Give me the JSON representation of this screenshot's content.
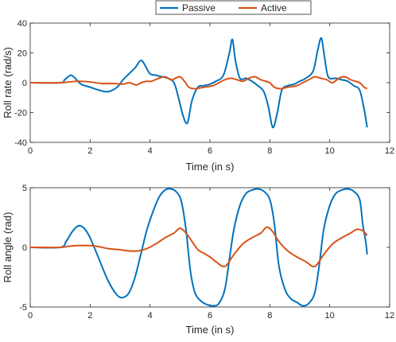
{
  "legend": {
    "items": [
      {
        "label": "Passive",
        "color": "#0072BD"
      },
      {
        "label": "Active",
        "color": "#D95319"
      }
    ]
  },
  "chart_data": [
    {
      "type": "line",
      "xlabel": "Time (in s)",
      "ylabel": "Roll rate (rad/s)",
      "xlim": [
        0,
        12
      ],
      "ylim": [
        -40,
        40
      ],
      "xticks": [
        "0",
        "2",
        "4",
        "6",
        "8",
        "10",
        "12"
      ],
      "yticks": [
        "-40",
        "-20",
        "0",
        "20",
        "40"
      ],
      "series": [
        {
          "name": "Passive",
          "color": "#0072BD",
          "x": [
            0,
            1.0,
            1.15,
            1.35,
            1.5,
            1.7,
            2.0,
            2.3,
            2.6,
            2.9,
            3.1,
            3.3,
            3.5,
            3.7,
            3.85,
            4.0,
            4.2,
            4.4,
            4.6,
            4.8,
            4.95,
            5.1,
            5.25,
            5.4,
            5.6,
            5.8,
            6.0,
            6.2,
            6.45,
            6.65,
            6.75,
            6.85,
            7.0,
            7.2,
            7.4,
            7.6,
            7.8,
            7.95,
            8.1,
            8.25,
            8.4,
            8.6,
            8.8,
            9.0,
            9.2,
            9.45,
            9.6,
            9.72,
            9.82,
            9.95,
            10.2,
            10.4,
            10.6,
            10.8,
            11.0,
            11.15,
            11.25
          ],
          "y": [
            0,
            0,
            2,
            5,
            3,
            -1,
            -3,
            -5,
            -6,
            -3,
            2,
            6,
            10,
            15,
            11,
            6,
            5,
            4,
            3,
            0,
            -10,
            -22,
            -27,
            -12,
            -3,
            -2,
            -1,
            1,
            5,
            20,
            29,
            15,
            3,
            3,
            1,
            -2,
            -6,
            -16,
            -30,
            -20,
            -5,
            -2,
            -1,
            1,
            3,
            8,
            22,
            30,
            18,
            4,
            3,
            2,
            1,
            -2,
            -5,
            -18,
            -30
          ]
        },
        {
          "name": "Active",
          "color": "#D95319",
          "x": [
            0,
            1.0,
            1.3,
            1.6,
            2.0,
            2.4,
            2.8,
            3.1,
            3.3,
            3.55,
            3.7,
            3.9,
            4.05,
            4.3,
            4.5,
            4.7,
            4.85,
            5.0,
            5.15,
            5.3,
            5.5,
            5.8,
            6.1,
            6.3,
            6.5,
            6.7,
            6.9,
            7.1,
            7.3,
            7.5,
            7.7,
            7.85,
            8.0,
            8.15,
            8.35,
            8.6,
            8.9,
            9.1,
            9.3,
            9.5,
            9.7,
            9.9,
            10.1,
            10.3,
            10.5,
            10.7,
            10.85,
            11.0,
            11.15,
            11.25
          ],
          "y": [
            0,
            0,
            0.5,
            1,
            0.5,
            -0.5,
            -0.5,
            -1,
            0,
            -1.5,
            0,
            1,
            1,
            3,
            4,
            2,
            3,
            4,
            1,
            -3,
            -4,
            -3,
            -2,
            0,
            2,
            3,
            2,
            1,
            3,
            4,
            2,
            1,
            0,
            -3,
            -4,
            -3,
            -2,
            0,
            2,
            4,
            3,
            2,
            0,
            3,
            4,
            2,
            1,
            0,
            -3,
            -4
          ]
        }
      ]
    },
    {
      "type": "line",
      "xlabel": "Time (in s)",
      "ylabel": "Roll angle (rad)",
      "xlim": [
        0,
        12
      ],
      "ylim": [
        -5,
        5
      ],
      "xticks": [
        "0",
        "2",
        "4",
        "6",
        "8",
        "10",
        "12"
      ],
      "yticks": [
        "-5",
        "0",
        "5"
      ],
      "series": [
        {
          "name": "Passive",
          "color": "#0072BD",
          "x": [
            0,
            1.0,
            1.2,
            1.4,
            1.6,
            1.8,
            2.0,
            2.3,
            2.6,
            2.9,
            3.1,
            3.3,
            3.5,
            3.7,
            3.9,
            4.1,
            4.3,
            4.5,
            4.7,
            4.9,
            5.05,
            5.2,
            5.35,
            5.5,
            5.7,
            5.9,
            6.1,
            6.3,
            6.5,
            6.65,
            6.8,
            7.0,
            7.2,
            7.4,
            7.6,
            7.8,
            8.0,
            8.15,
            8.3,
            8.5,
            8.7,
            8.9,
            9.1,
            9.3,
            9.5,
            9.65,
            9.8,
            10.0,
            10.2,
            10.4,
            10.6,
            10.8,
            11.0,
            11.1,
            11.2,
            11.25
          ],
          "y": [
            0,
            0,
            0.5,
            1.3,
            1.8,
            1.6,
            0.8,
            -1,
            -2.8,
            -4,
            -4.2,
            -3.8,
            -2.5,
            -0.5,
            1.5,
            3,
            4.2,
            4.8,
            4.9,
            4.6,
            3.8,
            1.5,
            -2,
            -3.8,
            -4.5,
            -4.8,
            -4.9,
            -4.7,
            -3.5,
            -1,
            1.5,
            3.5,
            4.5,
            4.8,
            4.9,
            4.7,
            4,
            2,
            -1.5,
            -3.5,
            -4.3,
            -4.6,
            -4.9,
            -4.7,
            -3.8,
            -1.5,
            1.5,
            3.5,
            4.5,
            4.8,
            4.9,
            4.7,
            4,
            2,
            0.5,
            -0.6
          ]
        },
        {
          "name": "Active",
          "color": "#D95319",
          "x": [
            0,
            1.0,
            1.3,
            1.6,
            1.9,
            2.2,
            2.6,
            3.0,
            3.3,
            3.6,
            3.9,
            4.2,
            4.5,
            4.8,
            5.0,
            5.2,
            5.4,
            5.6,
            5.8,
            6.0,
            6.2,
            6.5,
            6.8,
            7.1,
            7.4,
            7.7,
            7.9,
            8.1,
            8.3,
            8.6,
            8.9,
            9.2,
            9.5,
            9.8,
            10.1,
            10.4,
            10.7,
            10.9,
            11.1,
            11.25
          ],
          "y": [
            0,
            0,
            0.1,
            0.15,
            0.15,
            0.1,
            -0.1,
            -0.2,
            -0.3,
            -0.3,
            -0.1,
            0.3,
            0.8,
            1.2,
            1.6,
            1.2,
            0.5,
            -0.2,
            -0.5,
            -0.8,
            -1.2,
            -1.6,
            -0.6,
            0.3,
            0.8,
            1.2,
            1.7,
            1.3,
            0.5,
            -0.3,
            -0.8,
            -1.2,
            -1.6,
            -0.6,
            0.3,
            0.8,
            1.2,
            1.5,
            1.4,
            1.0
          ]
        }
      ]
    }
  ]
}
